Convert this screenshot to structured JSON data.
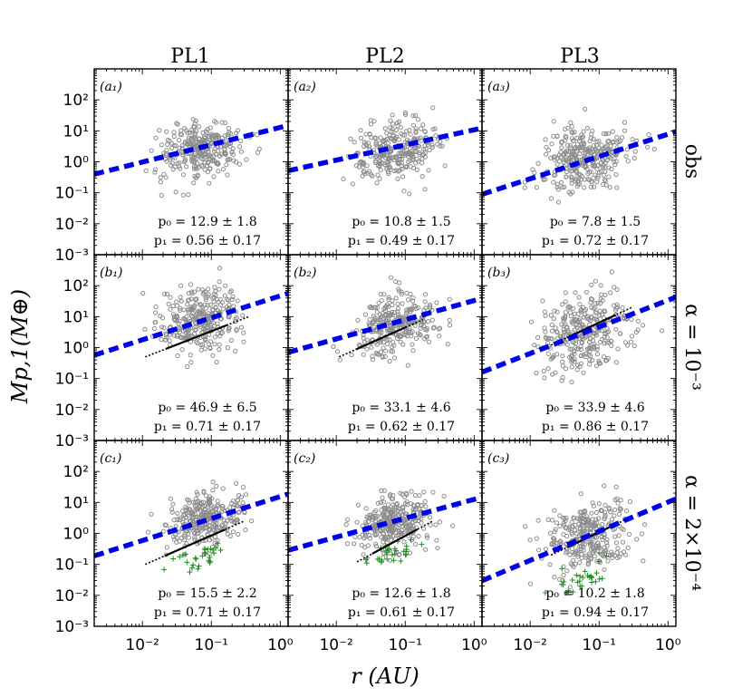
{
  "figure": {
    "column_titles": [
      "PL1",
      "PL2",
      "PL3"
    ],
    "row_labels": [
      "obs",
      "α = 10⁻³",
      "α = 2×10⁻⁴"
    ],
    "xlabel": "r (AU)",
    "ylabel": "Mp,1(M⊕)",
    "x_tick_labels": [
      "10⁻²",
      "10⁻¹",
      "10⁰"
    ],
    "y_tick_labels": [
      "10²",
      "10¹",
      "10⁰",
      "10⁻¹",
      "10⁻²",
      "10⁻³"
    ],
    "y_tick_labels_bottom": [
      "10²",
      "10¹",
      "10⁰",
      "10⁻¹",
      "10⁻²",
      "10⁻³"
    ]
  },
  "colors": {
    "scatter": "#8c8c8c",
    "fit_line": "#0000e6",
    "black_line": "#000000",
    "plus": "#228b22",
    "axes": "#000000"
  },
  "chart_data": {
    "type": "scatter",
    "x_scale": "log",
    "y_scale": "log",
    "xlim": [
      0.002,
      1.3
    ],
    "ylim": [
      0.001,
      1000
    ],
    "panels": [
      {
        "id": "a1",
        "label": "(a₁)",
        "row": 0,
        "col": 0,
        "fit": {
          "p0": 12.9,
          "p1": 0.56
        },
        "p0_text": "p₀ = 12.9 ± 1.8",
        "p1_text": "p₁ = 0.56 ± 0.17",
        "cloud": {
          "mx": 0.07,
          "my": 2.5,
          "sx": 0.3,
          "sy": 0.45,
          "n": 300
        },
        "black_line": null,
        "plus": null
      },
      {
        "id": "a2",
        "label": "(a₂)",
        "row": 0,
        "col": 1,
        "fit": {
          "p0": 10.8,
          "p1": 0.49
        },
        "p0_text": "p₀ = 10.8 ± 1.5",
        "p1_text": "p₁ = 0.49 ± 0.17",
        "cloud": {
          "mx": 0.07,
          "my": 2.5,
          "sx": 0.3,
          "sy": 0.45,
          "n": 300
        },
        "black_line": null,
        "plus": null
      },
      {
        "id": "a3",
        "label": "(a₃)",
        "row": 0,
        "col": 2,
        "fit": {
          "p0": 7.8,
          "p1": 0.72
        },
        "p0_text": "p₀ = 7.8 ± 1.5",
        "p1_text": "p₁ = 0.72 ± 0.17",
        "cloud": {
          "mx": 0.06,
          "my": 1.2,
          "sx": 0.32,
          "sy": 0.55,
          "n": 320
        },
        "black_line": null,
        "plus": null
      },
      {
        "id": "b1",
        "label": "(b₁)",
        "row": 1,
        "col": 0,
        "fit": {
          "p0": 46.9,
          "p1": 0.71
        },
        "p0_text": "p₀ = 46.9 ± 6.5",
        "p1_text": "p₁ = 0.71 ± 0.17",
        "cloud": {
          "mx": 0.07,
          "my": 8,
          "sx": 0.3,
          "sy": 0.5,
          "n": 300
        },
        "black_line": {
          "x": [
            0.011,
            0.35
          ],
          "y": [
            0.5,
            10
          ]
        },
        "plus": null
      },
      {
        "id": "b2",
        "label": "(b₂)",
        "row": 1,
        "col": 1,
        "fit": {
          "p0": 33.1,
          "p1": 0.62
        },
        "p0_text": "p₀ = 33.1 ± 4.6",
        "p1_text": "p₁ = 0.62 ± 0.17",
        "cloud": {
          "mx": 0.07,
          "my": 6,
          "sx": 0.3,
          "sy": 0.45,
          "n": 300
        },
        "black_line": {
          "x": [
            0.011,
            0.18
          ],
          "y": [
            0.5,
            8
          ]
        },
        "plus": null
      },
      {
        "id": "b3",
        "label": "(b₃)",
        "row": 1,
        "col": 2,
        "fit": {
          "p0": 33.9,
          "p1": 0.86
        },
        "p0_text": "p₀ = 33.9 ± 4.6",
        "p1_text": "p₁ = 0.86 ± 0.17",
        "cloud": {
          "mx": 0.06,
          "my": 3,
          "sx": 0.32,
          "sy": 0.55,
          "n": 320
        },
        "black_line": {
          "x": [
            0.02,
            0.3
          ],
          "y": [
            1.2,
            20
          ]
        },
        "plus": null
      },
      {
        "id": "c1",
        "label": "(c₁)",
        "row": 2,
        "col": 0,
        "fit": {
          "p0": 15.5,
          "p1": 0.71
        },
        "p0_text": "p₀ = 15.5 ± 2.2",
        "p1_text": "p₁ = 0.71 ± 0.17",
        "cloud": {
          "mx": 0.08,
          "my": 3,
          "sx": 0.28,
          "sy": 0.4,
          "n": 320
        },
        "black_line": {
          "x": [
            0.011,
            0.3
          ],
          "y": [
            0.1,
            2.5
          ]
        },
        "plus": {
          "mx": 0.08,
          "my": 0.2,
          "sx": 0.25,
          "sy": 0.15,
          "n": 30
        }
      },
      {
        "id": "c2",
        "label": "(c₂)",
        "row": 2,
        "col": 1,
        "fit": {
          "p0": 12.6,
          "p1": 0.61
        },
        "p0_text": "p₀ = 12.6 ± 1.8",
        "p1_text": "p₁ = 0.61 ± 0.17",
        "cloud": {
          "mx": 0.07,
          "my": 2.5,
          "sx": 0.28,
          "sy": 0.45,
          "n": 320
        },
        "black_line": {
          "x": [
            0.02,
            0.25
          ],
          "y": [
            0.12,
            2.5
          ]
        },
        "plus": {
          "mx": 0.06,
          "my": 0.2,
          "sx": 0.25,
          "sy": 0.15,
          "n": 30
        }
      },
      {
        "id": "c3",
        "label": "(c₃)",
        "row": 2,
        "col": 2,
        "fit": {
          "p0": 10.2,
          "p1": 0.94
        },
        "p0_text": "p₀ = 10.2 ± 1.8",
        "p1_text": "p₁ = 0.94 ± 0.17",
        "cloud": {
          "mx": 0.07,
          "my": 0.8,
          "sx": 0.3,
          "sy": 0.55,
          "n": 300
        },
        "black_line": {
          "x": [
            0.02,
            0.3
          ],
          "y": [
            0.2,
            3.5
          ]
        },
        "plus": {
          "mx": 0.06,
          "my": 0.04,
          "sx": 0.25,
          "sy": 0.25,
          "n": 30
        }
      }
    ]
  }
}
